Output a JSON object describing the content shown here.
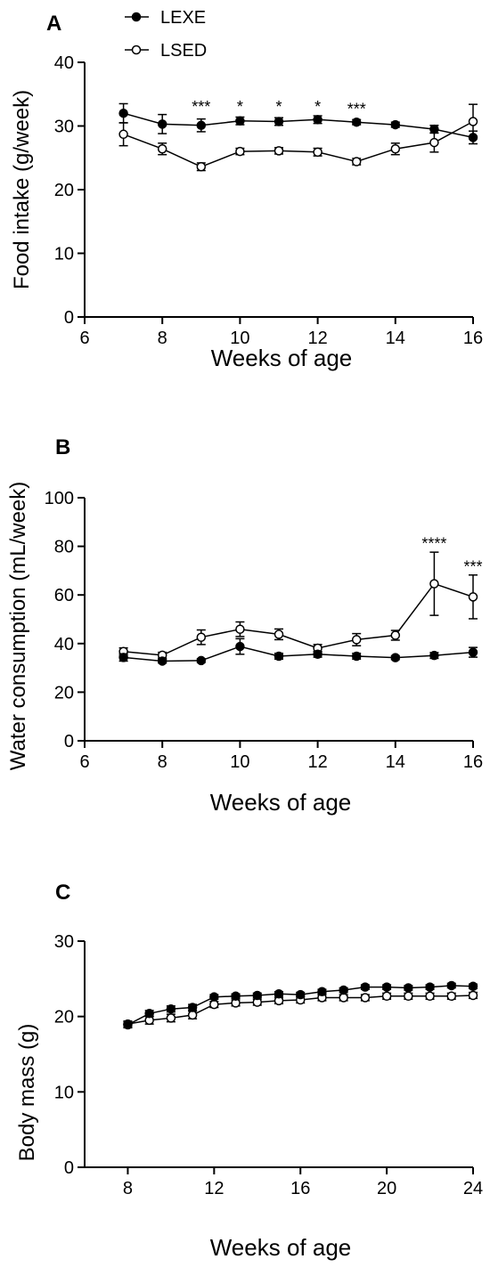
{
  "chart_data": [
    {
      "panel_label": "A",
      "type": "line",
      "xlabel": "Weeks of age",
      "ylabel": "Food intake (g/week)",
      "xlim": [
        6,
        16
      ],
      "ylim": [
        0,
        40
      ],
      "xticks": [
        "6",
        "8",
        "10",
        "12",
        "14",
        "16"
      ],
      "yticks": [
        "0",
        "10",
        "20",
        "30",
        "40"
      ],
      "legend": {
        "placement": "top-left",
        "entries": [
          "LEXE",
          "LSED"
        ]
      },
      "series": [
        {
          "name": "LEXE",
          "marker": "filled-circle",
          "x": [
            7,
            8,
            9,
            10,
            11,
            12,
            13,
            14,
            15,
            16
          ],
          "y": [
            32.0,
            30.3,
            30.1,
            30.8,
            30.7,
            31.0,
            30.6,
            30.2,
            29.5,
            28.2
          ],
          "err": [
            1.5,
            1.5,
            1.0,
            0.6,
            0.6,
            0.6,
            0.4,
            0.4,
            0.6,
            1.0
          ]
        },
        {
          "name": "LSED",
          "marker": "open-circle",
          "x": [
            7,
            8,
            9,
            10,
            11,
            12,
            13,
            14,
            15,
            16
          ],
          "y": [
            28.7,
            26.4,
            23.6,
            26.0,
            26.1,
            25.9,
            24.4,
            26.4,
            27.4,
            30.7
          ],
          "err": [
            1.8,
            0.9,
            0.6,
            0.5,
            0.5,
            0.6,
            0.5,
            0.9,
            1.5,
            2.7
          ]
        }
      ],
      "annotations": [
        {
          "x": 9,
          "y": 32.2,
          "text": "***"
        },
        {
          "x": 10,
          "y": 32.2,
          "text": "*"
        },
        {
          "x": 11,
          "y": 32.2,
          "text": "*"
        },
        {
          "x": 12,
          "y": 32.2,
          "text": "*"
        },
        {
          "x": 13,
          "y": 31.8,
          "text": "***"
        }
      ]
    },
    {
      "panel_label": "B",
      "type": "line",
      "xlabel": "Weeks of age",
      "ylabel": "Water consumption (mL/week)",
      "xlim": [
        6,
        16
      ],
      "ylim": [
        0,
        100
      ],
      "xticks": [
        "6",
        "8",
        "10",
        "12",
        "14",
        "16"
      ],
      "yticks": [
        "0",
        "20",
        "40",
        "60",
        "80",
        "100"
      ],
      "series": [
        {
          "name": "LEXE",
          "marker": "filled-circle",
          "x": [
            7,
            8,
            9,
            10,
            11,
            12,
            13,
            14,
            15,
            16
          ],
          "y": [
            34.3,
            32.8,
            33.0,
            38.8,
            34.8,
            35.6,
            34.8,
            34.2,
            35.1,
            36.4
          ],
          "err": [
            1.5,
            0.8,
            0.8,
            3.2,
            1.2,
            1.2,
            1.2,
            0.8,
            1.2,
            2.0
          ]
        },
        {
          "name": "LSED",
          "marker": "open-circle",
          "x": [
            7,
            8,
            9,
            10,
            11,
            12,
            13,
            14,
            15,
            16
          ],
          "y": [
            36.7,
            35.2,
            42.6,
            45.9,
            43.8,
            38.1,
            41.6,
            43.4,
            64.6,
            59.2
          ],
          "err": [
            1.5,
            1.2,
            3.0,
            3.0,
            2.2,
            1.5,
            2.5,
            2.0,
            13.0,
            9.0
          ]
        }
      ],
      "annotations": [
        {
          "x": 15,
          "y": 79.0,
          "text": "****"
        },
        {
          "x": 16,
          "y": 69.5,
          "text": "***"
        }
      ]
    },
    {
      "panel_label": "C",
      "type": "line",
      "xlabel": "Weeks of age",
      "ylabel": "Body mass (g)",
      "xlim": [
        6,
        24
      ],
      "ylim": [
        0,
        30
      ],
      "xticks": [
        "8",
        "12",
        "16",
        "20",
        "24"
      ],
      "yticks": [
        "0",
        "10",
        "20",
        "30"
      ],
      "series": [
        {
          "name": "LEXE",
          "marker": "filled-circle",
          "x": [
            8,
            9,
            10,
            11,
            12,
            13,
            14,
            15,
            16,
            17,
            18,
            19,
            20,
            21,
            22,
            23,
            24
          ],
          "y": [
            18.9,
            20.4,
            21.0,
            21.2,
            22.6,
            22.7,
            22.8,
            23.0,
            22.9,
            23.3,
            23.5,
            23.9,
            23.9,
            23.8,
            23.9,
            24.1,
            24.0
          ],
          "err": [
            0.4,
            0.4,
            0.4,
            0.4,
            0.3,
            0.3,
            0.3,
            0.3,
            0.3,
            0.3,
            0.3,
            0.3,
            0.3,
            0.3,
            0.3,
            0.3,
            0.3
          ]
        },
        {
          "name": "LSED",
          "marker": "open-circle",
          "x": [
            8,
            9,
            10,
            11,
            12,
            13,
            14,
            15,
            16,
            17,
            18,
            19,
            20,
            21,
            22,
            23,
            24
          ],
          "y": [
            19.0,
            19.5,
            19.8,
            20.2,
            21.6,
            21.8,
            21.9,
            22.1,
            22.2,
            22.5,
            22.5,
            22.5,
            22.7,
            22.7,
            22.7,
            22.7,
            22.8
          ],
          "err": [
            0.4,
            0.5,
            0.5,
            0.5,
            0.4,
            0.4,
            0.4,
            0.4,
            0.4,
            0.4,
            0.4,
            0.4,
            0.4,
            0.4,
            0.4,
            0.4,
            0.4
          ]
        }
      ],
      "annotations": []
    }
  ]
}
